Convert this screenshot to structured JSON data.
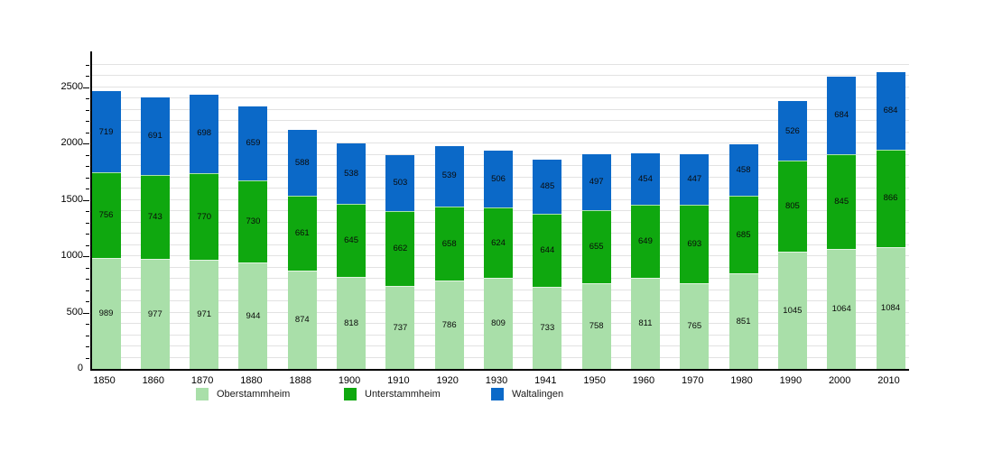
{
  "chart_data": {
    "type": "bar",
    "stacked": true,
    "title": "",
    "xlabel": "",
    "ylabel": "",
    "categories": [
      "1850",
      "1860",
      "1870",
      "1880",
      "1888",
      "1900",
      "1910",
      "1920",
      "1930",
      "1941",
      "1950",
      "1960",
      "1970",
      "1980",
      "1990",
      "2000",
      "2010"
    ],
    "series": [
      {
        "name": "Oberstammheim",
        "color": "#a9dfa9",
        "values": [
          989,
          977,
          971,
          944,
          874,
          818,
          737,
          786,
          809,
          733,
          758,
          811,
          765,
          851,
          1045,
          1064,
          1084
        ]
      },
      {
        "name": "Unterstammheim",
        "color": "#0fa80f",
        "values": [
          756,
          743,
          770,
          730,
          661,
          645,
          662,
          658,
          624,
          644,
          655,
          649,
          693,
          685,
          805,
          845,
          866
        ]
      },
      {
        "name": "Waltalingen",
        "color": "#0b69c8",
        "values": [
          719,
          691,
          698,
          659,
          588,
          538,
          503,
          539,
          506,
          485,
          497,
          454,
          447,
          458,
          526,
          684,
          684
        ]
      }
    ],
    "ylim": [
      0,
      2820
    ],
    "yticks": [
      0,
      500,
      1000,
      1500,
      2000,
      2500
    ],
    "minor_grid_step": 100,
    "grid": true,
    "legend_position": "bottom",
    "axis_color": "#000000",
    "gridline_color": "#e2e2e2",
    "value_label_color": "#0a0a0a"
  }
}
